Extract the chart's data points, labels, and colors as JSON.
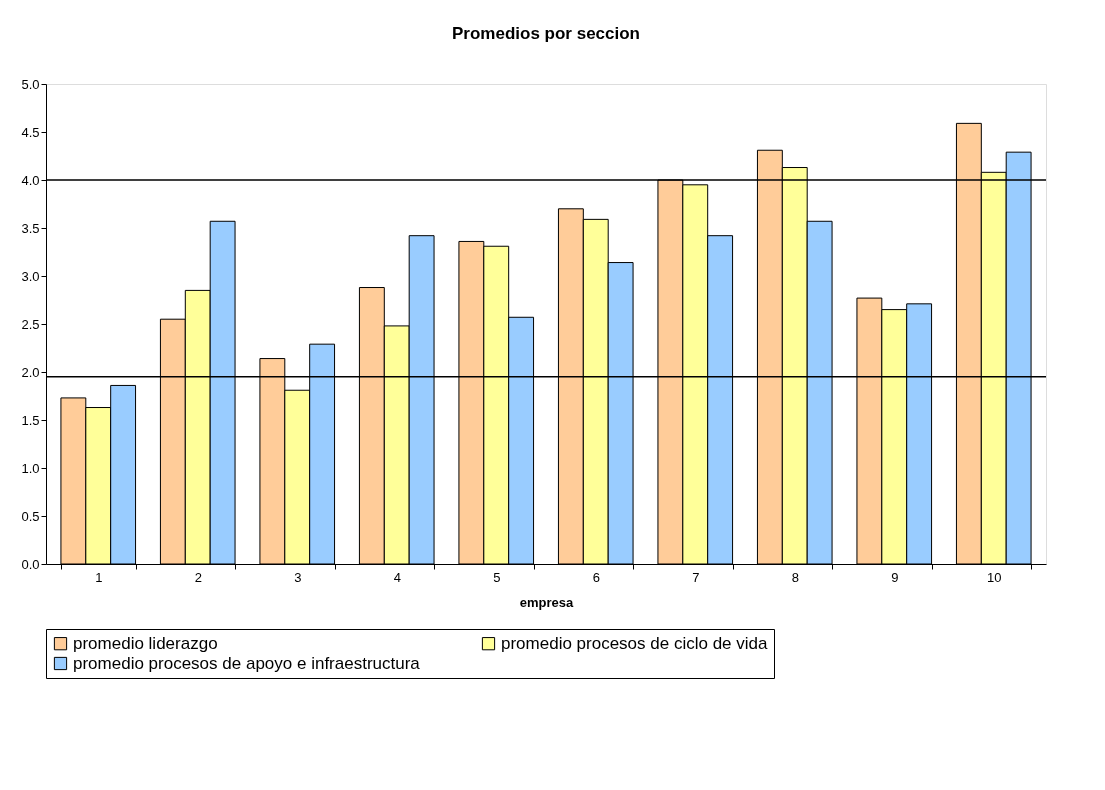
{
  "chart_data": {
    "type": "bar",
    "title": "Promedios por seccion",
    "xlabel": "empresa",
    "categories": [
      "1",
      "2",
      "3",
      "4",
      "5",
      "6",
      "7",
      "8",
      "9",
      "10"
    ],
    "series": [
      {
        "name": "promedio liderazgo",
        "color": "#ffcc99",
        "values": [
          1.73,
          2.55,
          2.14,
          2.88,
          3.36,
          3.7,
          4.0,
          4.31,
          2.77,
          4.59
        ]
      },
      {
        "name": "promedio procesos de ciclo de vida",
        "color": "#ffff99",
        "values": [
          1.63,
          2.85,
          1.81,
          2.48,
          3.31,
          3.59,
          3.95,
          4.13,
          2.65,
          4.08
        ]
      },
      {
        "name": "promedio procesos de apoyo e infraestructura",
        "color": "#99ccff",
        "values": [
          1.86,
          3.57,
          2.29,
          3.42,
          2.57,
          3.14,
          3.42,
          3.57,
          2.71,
          4.29
        ]
      }
    ],
    "ylim": [
      0,
      5
    ],
    "yticks": [
      {
        "value": 0,
        "label": "0.0"
      },
      {
        "value": 0.5,
        "label": "0.5"
      },
      {
        "value": 1,
        "label": "1.0"
      },
      {
        "value": 1.5,
        "label": "1.5"
      },
      {
        "value": 2,
        "label": "2.0"
      },
      {
        "value": 2.5,
        "label": "2.5"
      },
      {
        "value": 3,
        "label": "3.0"
      },
      {
        "value": 3.5,
        "label": "3.5"
      },
      {
        "value": 4,
        "label": "4.0"
      },
      {
        "value": 4.5,
        "label": "4.5"
      },
      {
        "value": 5,
        "label": "5.0"
      }
    ],
    "ref_lines": [
      {
        "axis": "y",
        "value": 4.0,
        "color": "#000000"
      },
      {
        "axis": "y",
        "value": 1.95,
        "color": "#000000"
      }
    ],
    "grid": false,
    "legend": "bottom"
  }
}
